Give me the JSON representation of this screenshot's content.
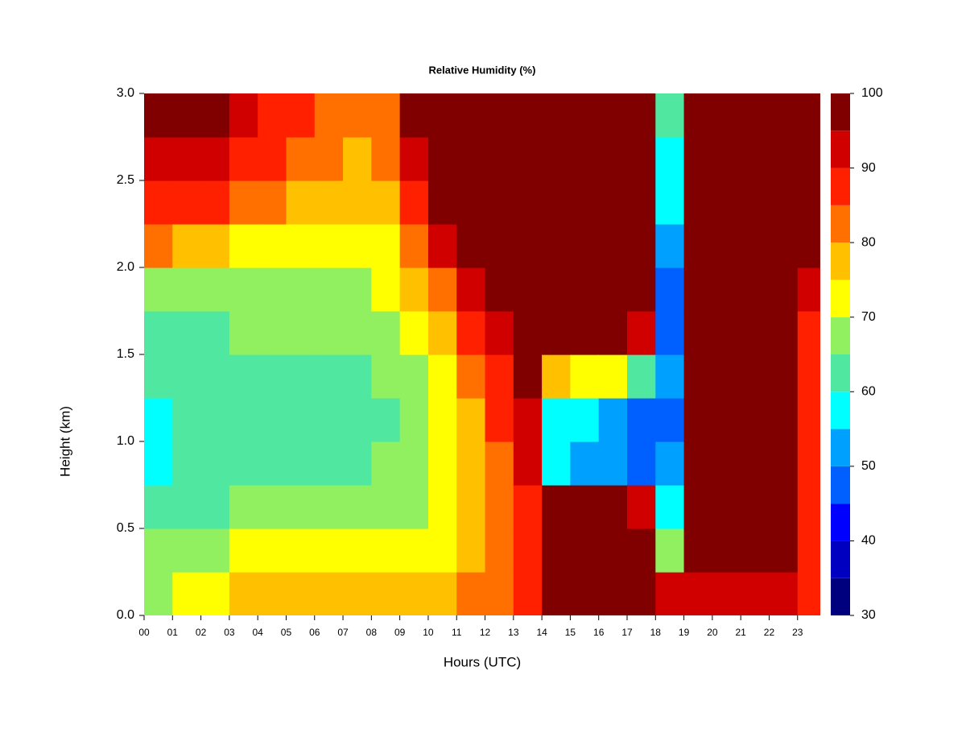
{
  "chart_data": {
    "type": "contour",
    "title": "Relative Humidity (%)",
    "xlabel": "Hours (UTC)",
    "ylabel": "Height (km)",
    "x": [
      0.5,
      1.5,
      2.5,
      3.5,
      4.5,
      5.5,
      6.5,
      7.5,
      8.5,
      9.5,
      10.5,
      11.5,
      12.5,
      13.5,
      14.5,
      15.5,
      16.5,
      17.5,
      18.5,
      19.5,
      20.5,
      21.5,
      22.5,
      23.5
    ],
    "y": [
      0.125,
      0.375,
      0.625,
      0.875,
      1.125,
      1.375,
      1.625,
      1.875,
      2.125,
      2.375,
      2.625,
      2.875
    ],
    "z": [
      [
        68,
        65,
        60,
        58,
        58,
        60,
        62,
        65,
        80,
        88,
        93,
        97
      ],
      [
        70,
        66,
        62,
        60,
        60,
        62,
        63,
        66,
        78,
        86,
        92,
        96
      ],
      [
        72,
        68,
        64,
        62,
        62,
        63,
        64,
        67,
        75,
        85,
        90,
        95
      ],
      [
        76,
        70,
        66,
        64,
        63,
        64,
        65,
        67,
        73,
        82,
        88,
        92
      ],
      [
        77,
        70,
        66,
        64,
        63,
        64,
        65,
        67,
        72,
        80,
        86,
        88
      ],
      [
        75,
        70,
        65,
        63,
        63,
        64,
        65,
        67,
        72,
        78,
        83,
        86
      ],
      [
        75,
        70,
        66,
        64,
        63,
        64,
        65,
        68,
        72,
        76,
        80,
        82
      ],
      [
        76,
        70,
        66,
        64,
        63,
        64,
        66,
        68,
        72,
        75,
        78,
        82
      ],
      [
        76,
        71,
        67,
        65,
        64,
        65,
        67,
        70,
        74,
        77,
        80,
        84
      ],
      [
        76,
        72,
        69,
        67,
        66,
        68,
        70,
        75,
        82,
        88,
        93,
        98
      ],
      [
        78,
        74,
        72,
        70,
        70,
        72,
        75,
        82,
        90,
        96,
        98,
        98
      ],
      [
        80,
        79,
        78,
        78,
        79,
        82,
        87,
        93,
        97,
        98,
        98,
        98
      ],
      [
        82,
        82,
        82,
        83,
        85,
        88,
        93,
        97,
        98,
        98,
        98,
        98
      ],
      [
        88,
        88,
        88,
        90,
        92,
        95,
        98,
        98,
        98,
        98,
        98,
        98
      ],
      [
        97,
        96,
        96,
        55,
        56,
        75,
        98,
        98,
        98,
        98,
        98,
        98
      ],
      [
        97,
        97,
        96,
        52,
        55,
        72,
        97,
        98,
        98,
        98,
        98,
        98
      ],
      [
        97,
        97,
        96,
        50,
        54,
        72,
        97,
        98,
        98,
        98,
        98,
        98
      ],
      [
        96,
        95,
        93,
        45,
        48,
        62,
        92,
        98,
        98,
        98,
        98,
        98
      ],
      [
        90,
        65,
        55,
        50,
        48,
        50,
        46,
        47,
        52,
        55,
        58,
        60
      ],
      [
        92,
        97,
        98,
        98,
        98,
        98,
        98,
        98,
        98,
        98,
        98,
        98
      ],
      [
        92,
        98,
        98,
        98,
        98,
        98,
        98,
        98,
        98,
        98,
        98,
        98
      ],
      [
        92,
        98,
        98,
        98,
        98,
        98,
        98,
        98,
        98,
        98,
        98,
        98
      ],
      [
        90,
        95,
        97,
        97,
        96,
        95,
        95,
        96,
        98,
        98,
        98,
        98
      ],
      [
        85,
        88,
        88,
        88,
        87,
        86,
        88,
        92,
        98,
        98,
        98,
        98
      ]
    ],
    "xlim": [
      0,
      23.8
    ],
    "ylim": [
      0,
      3
    ],
    "xticks": [
      {
        "value": 0,
        "label": "00"
      },
      {
        "value": 1,
        "label": "01"
      },
      {
        "value": 2,
        "label": "02"
      },
      {
        "value": 3,
        "label": "03"
      },
      {
        "value": 4,
        "label": "04"
      },
      {
        "value": 5,
        "label": "05"
      },
      {
        "value": 6,
        "label": "06"
      },
      {
        "value": 7,
        "label": "07"
      },
      {
        "value": 8,
        "label": "08"
      },
      {
        "value": 9,
        "label": "09"
      },
      10,
      11,
      12,
      13,
      14,
      15,
      16,
      17,
      18,
      19,
      20,
      21,
      22,
      23
    ],
    "yticks": [
      {
        "value": 0,
        "label": "0.0"
      },
      {
        "value": 0.5,
        "label": "0.5"
      },
      {
        "value": 1,
        "label": "1.0"
      },
      {
        "value": 1.5,
        "label": "1.5"
      },
      {
        "value": 2,
        "label": "2.0"
      },
      {
        "value": 2.5,
        "label": "2.5"
      },
      {
        "value": 3,
        "label": "3.0"
      }
    ],
    "levels": [
      30,
      35,
      40,
      45,
      50,
      55,
      60,
      65,
      70,
      75,
      80,
      85,
      90,
      95,
      100
    ],
    "colors": [
      "#00007f",
      "#0000c0",
      "#0000ff",
      "#0060ff",
      "#00a0ff",
      "#00ffff",
      "#50e8a0",
      "#90f060",
      "#ffff00",
      "#ffc000",
      "#ff7000",
      "#ff2000",
      "#d00000",
      "#800000"
    ],
    "colorbar_ticks": [
      30,
      40,
      50,
      60,
      70,
      80,
      90,
      100
    ]
  }
}
